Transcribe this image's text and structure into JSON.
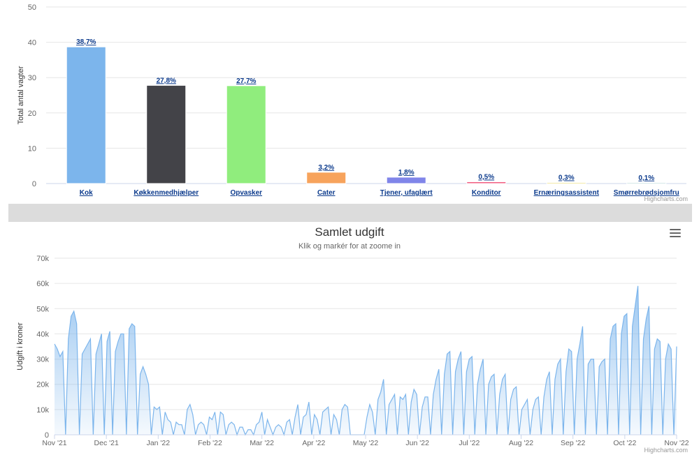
{
  "chart_data": [
    {
      "type": "bar",
      "title": "",
      "ylabel": "Total antal vagter",
      "ylim": [
        0,
        50
      ],
      "yticks": [
        0,
        10,
        20,
        30,
        40,
        50
      ],
      "categories": [
        "Kok",
        "Køkkenmedhjælper",
        "Opvasker",
        "Cater",
        "Tjener, ufaglært",
        "Konditor",
        "Ernæringsassistent",
        "Smørrebrødsjomfru"
      ],
      "values": [
        38.7,
        27.8,
        27.7,
        3.2,
        1.8,
        0.5,
        0.3,
        0.1
      ],
      "data_labels": [
        "38,7%",
        "27,8%",
        "27,7%",
        "3,2%",
        "1,8%",
        "0,5%",
        "0,3%",
        "0,1%"
      ],
      "colors": [
        "#7cb5ec",
        "#434348",
        "#90ed7d",
        "#f7a35c",
        "#8085e9",
        "#f15c80",
        "#e4d354",
        "#2b908f"
      ],
      "credits": "Highcharts.com"
    },
    {
      "type": "area",
      "title": "Samlet udgift",
      "subtitle": "Klik og markér for at zoome in",
      "ylabel": "Udgift i kroner",
      "ylim": [
        0,
        70000
      ],
      "yticks": [
        "0",
        "10k",
        "20k",
        "30k",
        "40k",
        "50k",
        "60k",
        "70k"
      ],
      "xticks": [
        "Nov '21",
        "Dec '21",
        "Jan '22",
        "Feb '22",
        "Mar '22",
        "Apr '22",
        "May '22",
        "Jun '22",
        "Jul '22",
        "Aug '22",
        "Sep '22",
        "Oct '22",
        "Nov '22"
      ],
      "series_color": "#7cb5ec",
      "values": [
        36000,
        34000,
        31000,
        33000,
        0,
        38000,
        47000,
        49000,
        44000,
        0,
        32000,
        34000,
        36000,
        38000,
        0,
        32000,
        36000,
        40000,
        0,
        37000,
        41000,
        0,
        33000,
        37000,
        40000,
        40000,
        0,
        42000,
        44000,
        43000,
        0,
        24000,
        27000,
        24000,
        20000,
        0,
        11000,
        10000,
        11000,
        0,
        9000,
        6000,
        5000,
        0,
        5000,
        4000,
        4000,
        0,
        10000,
        12000,
        8000,
        0,
        4000,
        5000,
        4000,
        0,
        7000,
        6000,
        9000,
        0,
        9000,
        8000,
        0,
        4000,
        5000,
        4000,
        0,
        3000,
        3000,
        0,
        2000,
        2000,
        0,
        4000,
        5000,
        9000,
        0,
        6000,
        3000,
        0,
        3000,
        4000,
        3000,
        0,
        5000,
        6000,
        0,
        7000,
        12000,
        0,
        7000,
        8000,
        13000,
        0,
        8000,
        6000,
        0,
        9000,
        10000,
        11000,
        0,
        8000,
        6000,
        0,
        10000,
        12000,
        11000,
        0,
        0,
        0,
        0,
        0,
        0,
        7000,
        12000,
        9000,
        0,
        14000,
        17000,
        22000,
        0,
        12000,
        14000,
        16000,
        0,
        15000,
        14000,
        16000,
        0,
        13000,
        18000,
        16000,
        0,
        11000,
        15000,
        15000,
        0,
        16000,
        22000,
        26000,
        0,
        24000,
        32000,
        33000,
        0,
        25000,
        30000,
        33000,
        0,
        25000,
        30000,
        31000,
        0,
        20000,
        26000,
        30000,
        0,
        20000,
        23000,
        24000,
        0,
        16000,
        22000,
        24000,
        0,
        14000,
        18000,
        19000,
        0,
        10000,
        12000,
        14000,
        0,
        10000,
        14000,
        15000,
        0,
        15000,
        22000,
        25000,
        0,
        22000,
        28000,
        30000,
        0,
        25000,
        34000,
        33000,
        0,
        30000,
        36000,
        43000,
        0,
        28000,
        30000,
        30000,
        0,
        27000,
        29000,
        30000,
        0,
        38000,
        43000,
        44000,
        0,
        40000,
        47000,
        48000,
        0,
        43000,
        51000,
        59000,
        0,
        38000,
        46000,
        51000,
        0,
        34000,
        38000,
        37000,
        0,
        30000,
        36000,
        34000,
        0,
        35000
      ],
      "credits": "Highcharts.com"
    }
  ]
}
